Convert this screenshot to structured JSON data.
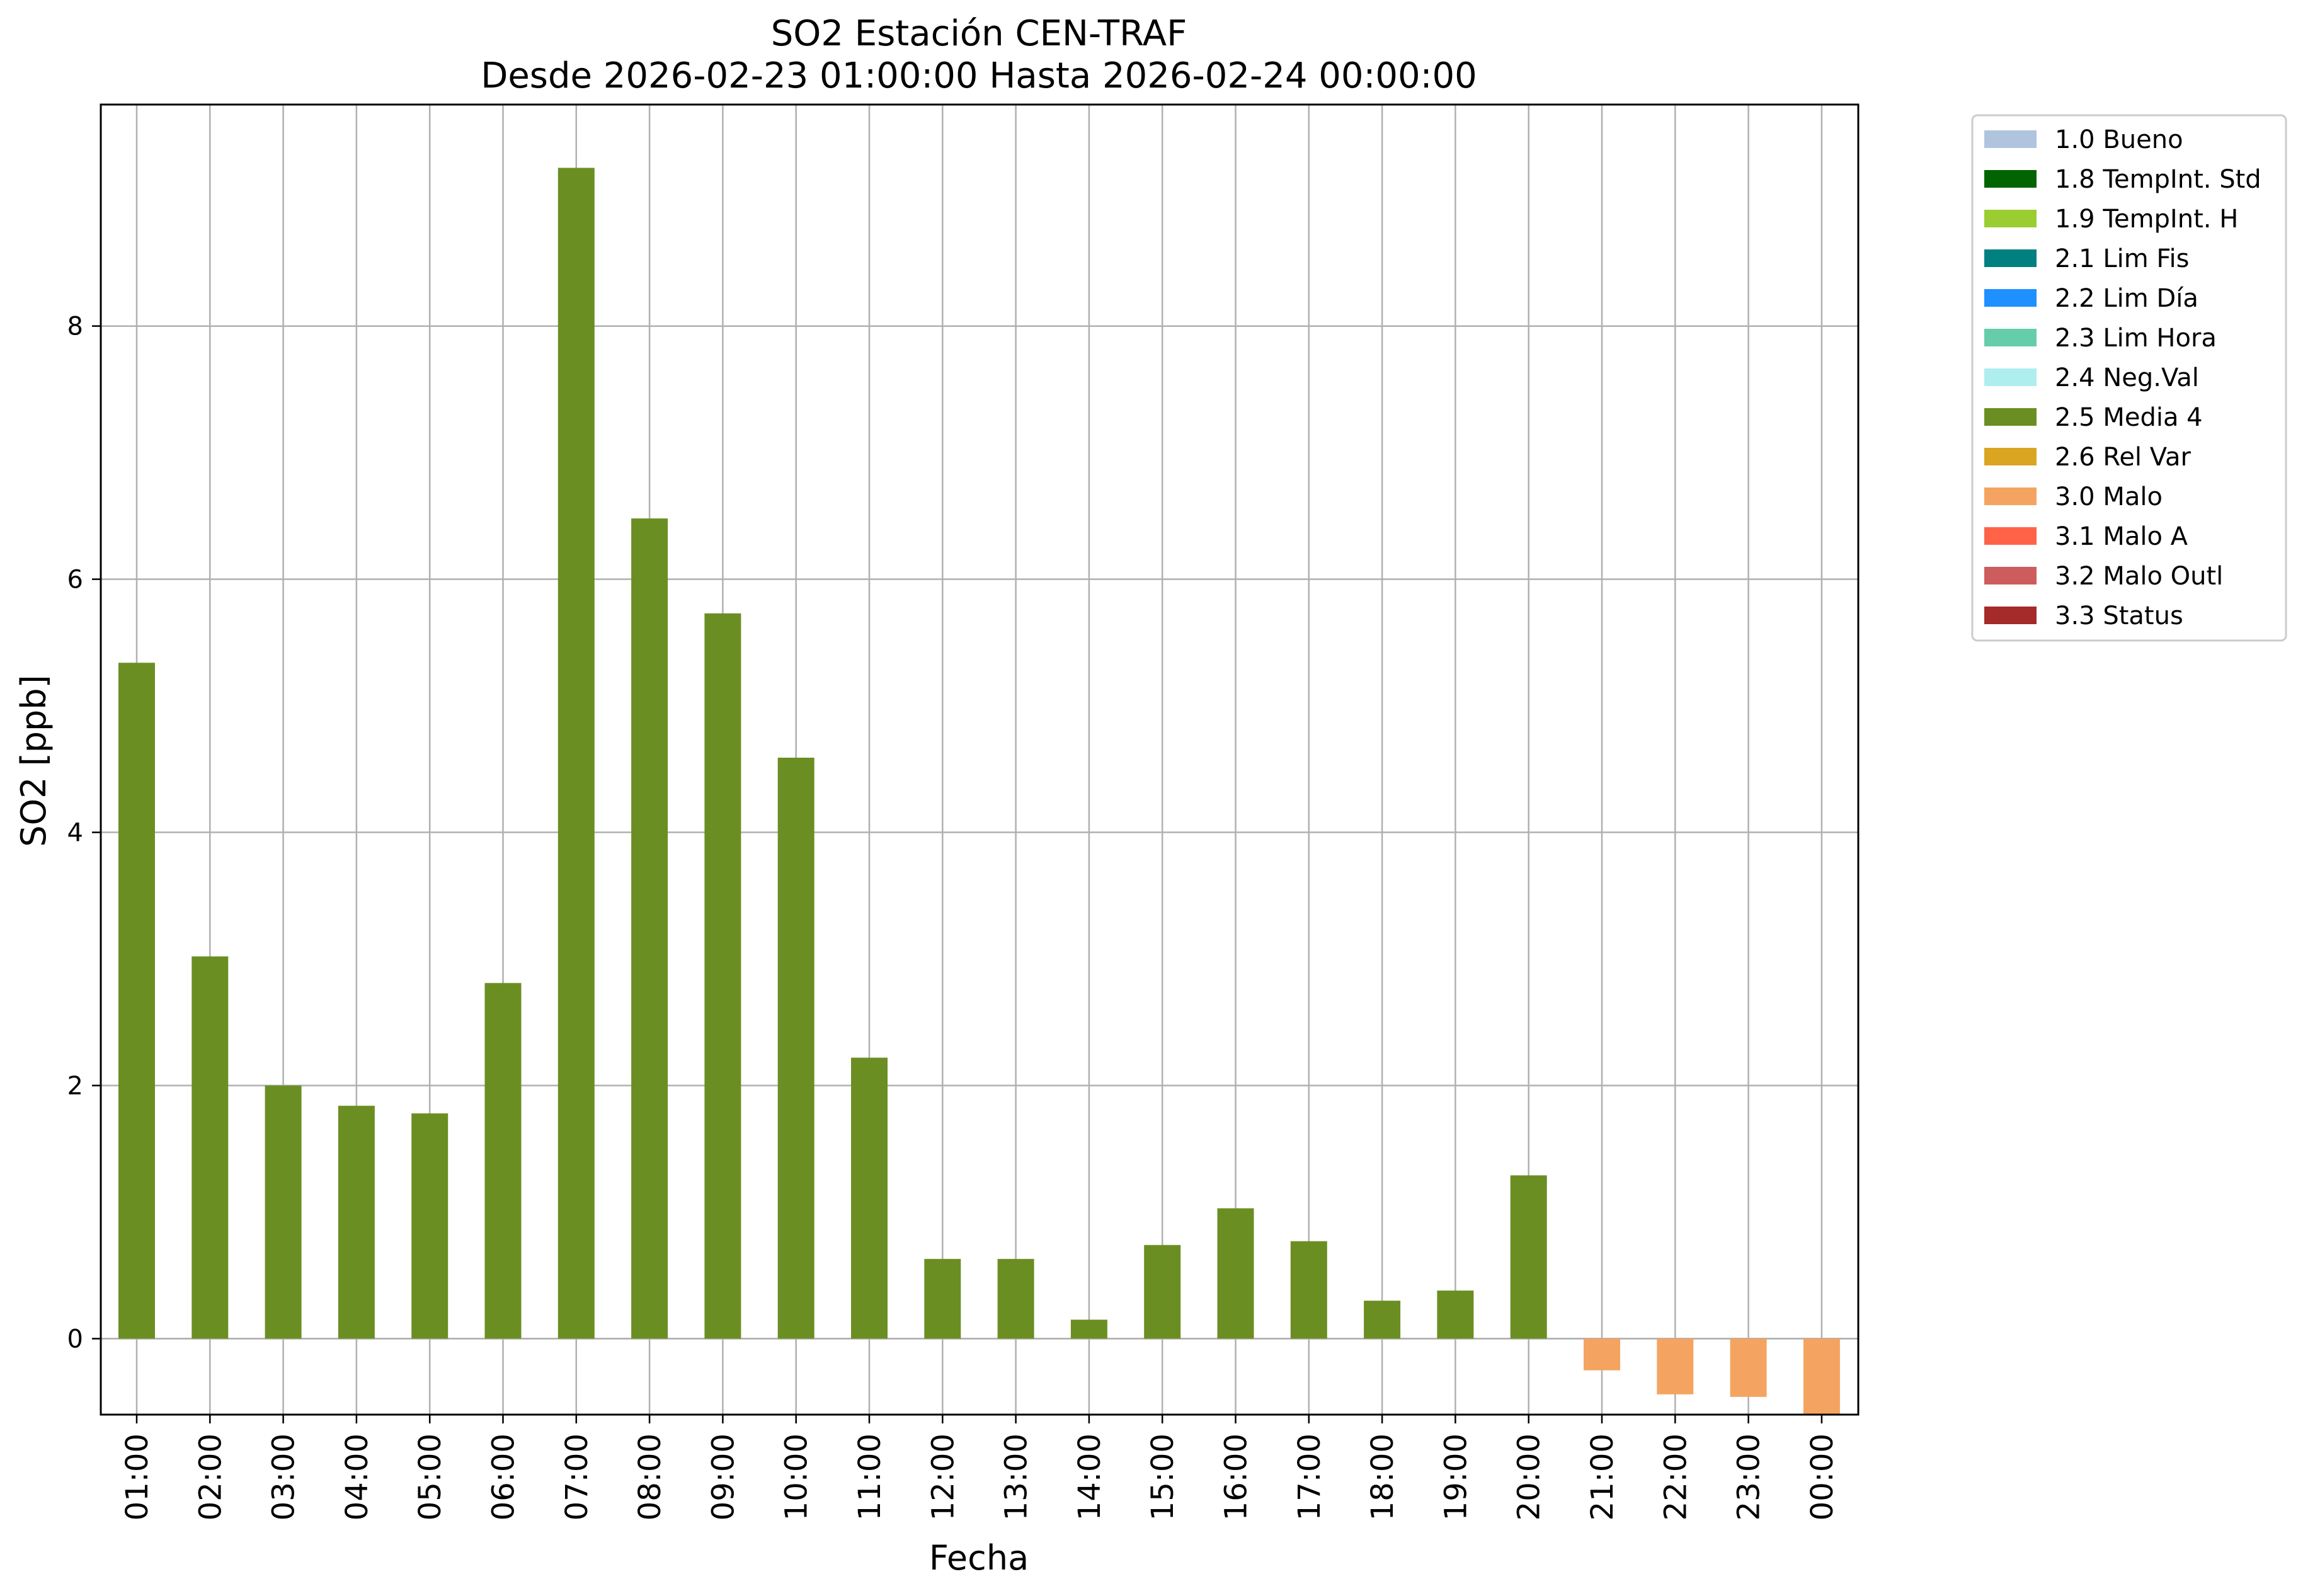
{
  "chart_data": {
    "type": "bar",
    "title": "SO2 Estación CEN-TRAF",
    "subtitle": "Desde 2026-02-23 01:00:00 Hasta 2026-02-24 00:00:00",
    "xlabel": "Fecha",
    "ylabel": "SO2 [ppb]",
    "ylim": [
      -0.6,
      9.75
    ],
    "yticks": [
      0,
      2,
      4,
      6,
      8
    ],
    "grid": true,
    "legend_position": "outside-right",
    "categories": [
      "01:00",
      "02:00",
      "03:00",
      "04:00",
      "05:00",
      "06:00",
      "07:00",
      "08:00",
      "09:00",
      "10:00",
      "11:00",
      "12:00",
      "13:00",
      "14:00",
      "15:00",
      "16:00",
      "17:00",
      "18:00",
      "19:00",
      "20:00",
      "21:00",
      "22:00",
      "23:00",
      "00:00"
    ],
    "values": [
      5.34,
      3.02,
      2.0,
      1.84,
      1.78,
      2.81,
      9.25,
      6.48,
      5.73,
      4.59,
      2.22,
      0.63,
      0.63,
      0.15,
      0.74,
      1.03,
      0.77,
      0.3,
      0.38,
      1.29,
      -0.25,
      -0.44,
      -0.46,
      -0.6
    ],
    "flags": [
      "2.5 Media 4",
      "2.5 Media 4",
      "2.5 Media 4",
      "2.5 Media 4",
      "2.5 Media 4",
      "2.5 Media 4",
      "2.5 Media 4",
      "2.5 Media 4",
      "2.5 Media 4",
      "2.5 Media 4",
      "2.5 Media 4",
      "2.5 Media 4",
      "2.5 Media 4",
      "2.5 Media 4",
      "2.5 Media 4",
      "2.5 Media 4",
      "2.5 Media 4",
      "2.5 Media 4",
      "2.5 Media 4",
      "2.5 Media 4",
      "3.0 Malo",
      "3.0 Malo",
      "3.0 Malo",
      "3.0 Malo"
    ],
    "legend": [
      {
        "label": "1.0 Bueno",
        "color": "#b0c4de"
      },
      {
        "label": "1.8 TempInt. Std",
        "color": "#006400"
      },
      {
        "label": "1.9 TempInt. H",
        "color": "#9acd32"
      },
      {
        "label": "2.1 Lim Fis",
        "color": "#008080"
      },
      {
        "label": "2.2 Lim Día",
        "color": "#1e90ff"
      },
      {
        "label": "2.3 Lim Hora",
        "color": "#66cdaa"
      },
      {
        "label": "2.4 Neg.Val",
        "color": "#afeeee"
      },
      {
        "label": "2.5 Media 4",
        "color": "#6b8e23"
      },
      {
        "label": "2.6 Rel Var",
        "color": "#daa520"
      },
      {
        "label": "3.0 Malo",
        "color": "#f4a460"
      },
      {
        "label": "3.1 Malo A",
        "color": "#ff6347"
      },
      {
        "label": "3.2 Malo Outl",
        "color": "#cd5c5c"
      },
      {
        "label": "3.3 Status",
        "color": "#a52a2a"
      }
    ]
  }
}
